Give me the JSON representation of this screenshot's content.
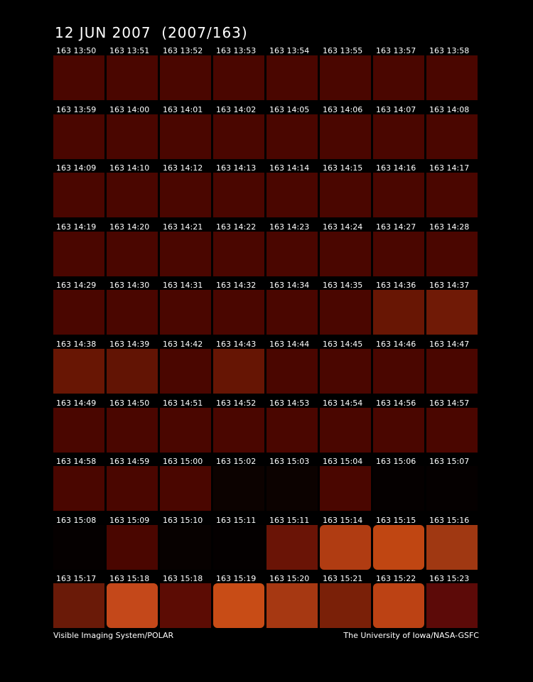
{
  "header": {
    "title": "12 JUN 2007  (2007/163)"
  },
  "frames": {
    "rows": [
      [
        "163 13:50",
        "163 13:51",
        "163 13:52",
        "163 13:53",
        "163 13:54",
        "163 13:55",
        "163 13:57",
        "163 13:58"
      ],
      [
        "163 13:59",
        "163 14:00",
        "163 14:01",
        "163 14:02",
        "163 14:05",
        "163 14:06",
        "163 14:07",
        "163 14:08"
      ],
      [
        "163 14:09",
        "163 14:10",
        "163 14:12",
        "163 14:13",
        "163 14:14",
        "163 14:15",
        "163 14:16",
        "163 14:17"
      ],
      [
        "163 14:19",
        "163 14:20",
        "163 14:21",
        "163 14:22",
        "163 14:23",
        "163 14:24",
        "163 14:27",
        "163 14:28"
      ],
      [
        "163 14:29",
        "163 14:30",
        "163 14:31",
        "163 14:32",
        "163 14:34",
        "163 14:35",
        "163 14:36",
        "163 14:37"
      ],
      [
        "163 14:38",
        "163 14:39",
        "163 14:42",
        "163 14:43",
        "163 14:44",
        "163 14:45",
        "163 14:46",
        "163 14:47"
      ],
      [
        "163 14:49",
        "163 14:50",
        "163 14:51",
        "163 14:52",
        "163 14:53",
        "163 14:54",
        "163 14:56",
        "163 14:57"
      ],
      [
        "163 14:58",
        "163 14:59",
        "163 15:00",
        "163 15:02",
        "163 15:03",
        "163 15:04",
        "163 15:06",
        "163 15:07"
      ],
      [
        "163 15:08",
        "163 15:09",
        "163 15:10",
        "163 15:11",
        "163 15:11",
        "163 15:14",
        "163 15:15",
        "163 15:16"
      ],
      [
        "163 15:17",
        "163 15:18",
        "163 15:18",
        "163 15:19",
        "163 15:20",
        "163 15:21",
        "163 15:22",
        "163 15:23"
      ]
    ]
  },
  "footer": {
    "left": "Visible Imaging System/POLAR",
    "right": "The University of Iowa/NASA-GSFC"
  }
}
